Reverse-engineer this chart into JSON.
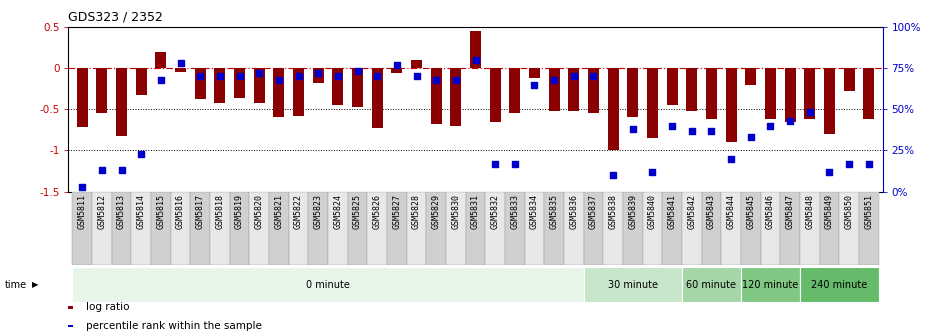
{
  "title": "GDS323 / 2352",
  "samples": [
    "GSM5811",
    "GSM5812",
    "GSM5813",
    "GSM5814",
    "GSM5815",
    "GSM5816",
    "GSM5817",
    "GSM5818",
    "GSM5819",
    "GSM5820",
    "GSM5821",
    "GSM5822",
    "GSM5823",
    "GSM5824",
    "GSM5825",
    "GSM5826",
    "GSM5827",
    "GSM5828",
    "GSM5829",
    "GSM5830",
    "GSM5831",
    "GSM5832",
    "GSM5833",
    "GSM5834",
    "GSM5835",
    "GSM5836",
    "GSM5837",
    "GSM5838",
    "GSM5839",
    "GSM5840",
    "GSM5841",
    "GSM5842",
    "GSM5843",
    "GSM5844",
    "GSM5845",
    "GSM5846",
    "GSM5847",
    "GSM5848",
    "GSM5849",
    "GSM5850",
    "GSM5851"
  ],
  "log_ratio": [
    -0.72,
    -0.55,
    -0.82,
    -0.33,
    0.2,
    -0.05,
    -0.38,
    -0.42,
    -0.36,
    -0.42,
    -0.6,
    -0.58,
    -0.18,
    -0.45,
    -0.47,
    -0.73,
    -0.06,
    0.1,
    -0.68,
    -0.7,
    0.45,
    -0.65,
    -0.55,
    -0.12,
    -0.52,
    -0.52,
    -0.55,
    -1.0,
    -0.6,
    -0.85,
    -0.45,
    -0.52,
    -0.62,
    -0.9,
    -0.2,
    -0.62,
    -0.65,
    -0.62,
    -0.8,
    -0.28,
    -0.62
  ],
  "percentile": [
    3,
    13,
    13,
    23,
    68,
    78,
    70,
    70,
    70,
    72,
    68,
    70,
    72,
    70,
    73,
    70,
    77,
    70,
    68,
    68,
    80,
    17,
    17,
    65,
    68,
    70,
    70,
    10,
    38,
    12,
    40,
    37,
    37,
    20,
    33,
    40,
    43,
    48,
    12,
    17,
    17
  ],
  "bar_color": "#8B0000",
  "dot_color": "#0000CD",
  "ylim_left": [
    -1.5,
    0.5
  ],
  "ylim_right": [
    0,
    100
  ],
  "yticks_left": [
    -1.5,
    -1.0,
    -0.5,
    0.0,
    0.5
  ],
  "ytick_labels_left": [
    "-1.5",
    "-1",
    "-0.5",
    "0",
    "0.5"
  ],
  "yticks_right": [
    0,
    25,
    50,
    75,
    100
  ],
  "ytick_labels_right": [
    "0%",
    "25%",
    "50%",
    "75%",
    "100%"
  ],
  "hline_dashed": 0.0,
  "hlines_dotted": [
    -0.5,
    -1.0
  ],
  "time_bands": [
    {
      "label": "0 minute",
      "start": 0,
      "end": 26,
      "color": "#e8f5e9"
    },
    {
      "label": "30 minute",
      "start": 26,
      "end": 31,
      "color": "#c8e6c9"
    },
    {
      "label": "60 minute",
      "start": 31,
      "end": 34,
      "color": "#a5d6a7"
    },
    {
      "label": "120 minute",
      "start": 34,
      "end": 37,
      "color": "#81c784"
    },
    {
      "label": "240 minute",
      "start": 37,
      "end": 41,
      "color": "#66bb6a"
    }
  ],
  "bg_color": "#ffffff",
  "plot_bg": "#ffffff",
  "title_fontsize": 9,
  "tick_fontsize": 6,
  "bar_width": 0.55
}
